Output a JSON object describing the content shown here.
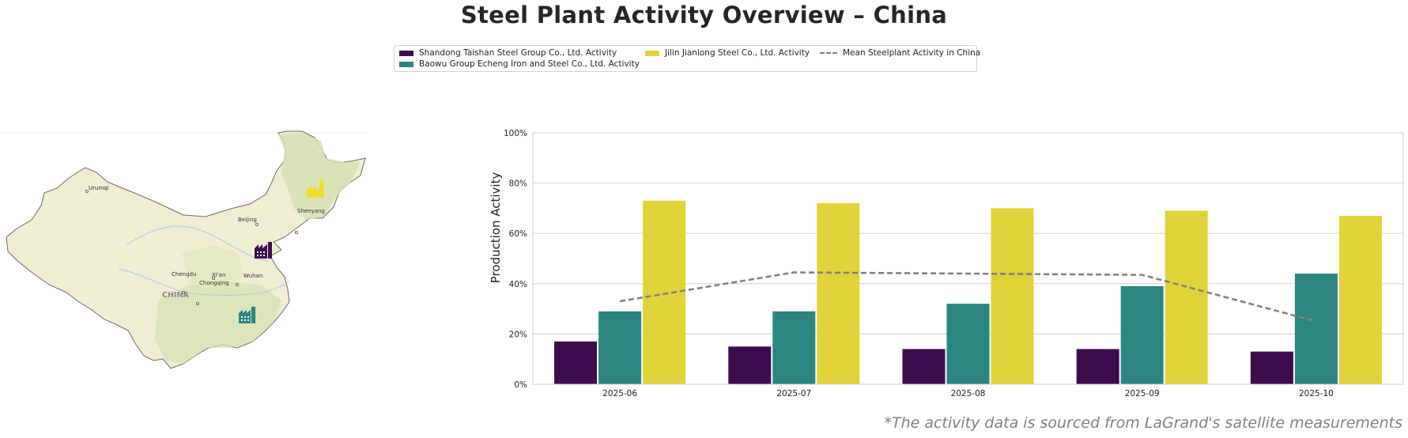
{
  "title": "Steel Plant Activity Overview – China",
  "colors": {
    "shandong": "#3f0b4e",
    "baowu": "#2b8580",
    "jilin": "#e2d23a",
    "mean": "#7f7f7f",
    "grid": "#d3d3d3",
    "land": "#efedd2",
    "land_green": "#d7e2b2",
    "border": "#6b6b6b"
  },
  "legend": {
    "shandong": "Shandong Taishan Steel Group Co., Ltd. Activity",
    "baowu": "Baowu Group Echeng Iron and Steel Co., Ltd. Activity",
    "jilin": "Jilin Jianlong Steel Co., Ltd. Activity",
    "mean": "Mean Steelplant Activity in China"
  },
  "map": {
    "country_label": "CHINA",
    "cities": [
      "Urumqi",
      "Beijing",
      "Shenyang",
      "Xi'an",
      "Chengdu",
      "Chongqing",
      "Wuhan"
    ],
    "plants": [
      {
        "name": "Jilin Jianlong Steel",
        "color_key": "jilin",
        "icon": "factory-icon"
      },
      {
        "name": "Shandong Taishan Steel",
        "color_key": "shandong",
        "icon": "factory-icon"
      },
      {
        "name": "Baowu Echeng Steel",
        "color_key": "baowu",
        "icon": "factory-icon"
      }
    ]
  },
  "chart_data": {
    "type": "bar",
    "categories": [
      "2025-06",
      "2025-07",
      "2025-08",
      "2025-09",
      "2025-10"
    ],
    "series": [
      {
        "name": "Shandong Taishan Steel Group Co., Ltd. Activity",
        "color_key": "shandong",
        "values": [
          17,
          15,
          14,
          14,
          13
        ]
      },
      {
        "name": "Baowu Group Echeng Iron and Steel Co., Ltd. Activity",
        "color_key": "baowu",
        "values": [
          29,
          29,
          32,
          39,
          44
        ]
      },
      {
        "name": "Jilin Jianlong Steel Co., Ltd. Activity",
        "color_key": "jilin",
        "values": [
          73,
          72,
          70,
          69,
          67
        ]
      }
    ],
    "line": {
      "name": "Mean Steelplant Activity in China",
      "type": "dashed",
      "values": [
        33,
        44.5,
        44,
        43.5,
        25
      ]
    },
    "ylabel": "Production Activity",
    "xlabel": "",
    "ylim": [
      0,
      100
    ],
    "yticks": [
      "0%",
      "20%",
      "40%",
      "60%",
      "80%",
      "100%"
    ],
    "ytick_values": [
      0,
      20,
      40,
      60,
      80,
      100
    ],
    "grid": true
  },
  "source_note": "*The activity data is sourced from LaGrand's satellite measurements"
}
